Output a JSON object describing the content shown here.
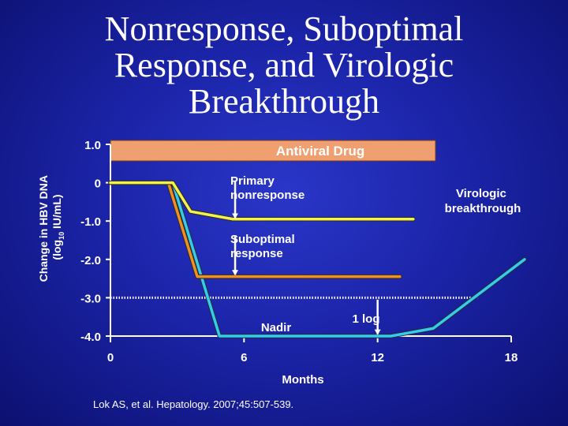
{
  "title_lines": [
    "Nonresponse, Suboptimal",
    "Response, and Virologic",
    "Breakthrough"
  ],
  "citation": "Lok AS, et al. Hepatology. 2007;45:507-539.",
  "chart_data": {
    "type": "line",
    "title": "Nonresponse, Suboptimal Response, and Virologic Breakthrough",
    "xlabel": "Months",
    "ylabel_parts": [
      "Change in HBV DNA",
      "(log",
      "10",
      " IU/mL)"
    ],
    "xlim": [
      0,
      18
    ],
    "ylim": [
      -4.0,
      1.0
    ],
    "x_ticks": [
      0,
      6,
      12,
      18
    ],
    "y_ticks": [
      1.0,
      0,
      -1.0,
      -2.0,
      -3.0,
      -4.0
    ],
    "y_tick_labels": [
      "1.0",
      "0",
      "-1.0",
      "-2.0",
      "-3.0",
      "-4.0"
    ],
    "treatment_bar": {
      "label": "Antiviral Drug",
      "x_start": 0,
      "x_end": 14.6,
      "color": "#f0a070"
    },
    "threshold_line": {
      "y": -3.0,
      "x_start": 0,
      "x_end": 16.5,
      "style": "dotted"
    },
    "series": [
      {
        "id": "virologic-breakthrough",
        "color": "#33ccee",
        "x": [
          0,
          2.8,
          4.9,
          12.6,
          14.5,
          18.6
        ],
        "y": [
          0,
          0,
          -4.0,
          -4.0,
          -3.8,
          -2.0
        ]
      },
      {
        "id": "suboptimal-response",
        "color": "#f09020",
        "x": [
          0,
          2.6,
          3.9,
          13.0
        ],
        "y": [
          0,
          0,
          -2.45,
          -2.45
        ]
      },
      {
        "id": "primary-nonresponse",
        "color": "#f2f24a",
        "x": [
          0,
          2.8,
          3.6,
          5.5,
          13.6
        ],
        "y": [
          0,
          0,
          -0.75,
          -0.95,
          -0.95
        ]
      }
    ],
    "annotations": [
      {
        "id": "primary-nonresponse",
        "lines": [
          "Primary",
          "nonresponse"
        ],
        "arrow_from": [
          5.6,
          0.05
        ],
        "arrow_to": [
          5.6,
          -0.92
        ]
      },
      {
        "id": "suboptimal-response",
        "lines": [
          "Suboptimal",
          "response"
        ],
        "arrow_from": [
          5.6,
          -1.4
        ],
        "arrow_to": [
          5.6,
          -2.4
        ]
      },
      {
        "id": "virologic-breakthrough",
        "lines": [
          "Virologic",
          "breakthrough"
        ]
      },
      {
        "id": "nadir",
        "lines": [
          "Nadir"
        ]
      },
      {
        "id": "one-log",
        "lines": [
          "1 log"
        ],
        "arrow_from": [
          12,
          -3.05
        ],
        "arrow_to": [
          12,
          -3.95
        ]
      }
    ]
  }
}
